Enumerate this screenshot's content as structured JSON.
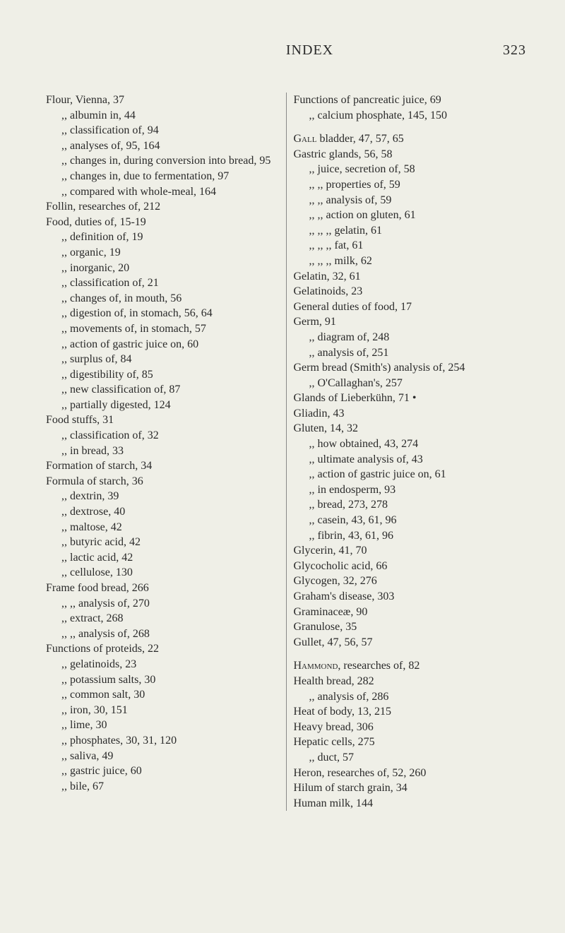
{
  "header": {
    "title": "INDEX",
    "pageNumber": "323"
  },
  "style": {
    "background": "#efefe7",
    "text_color": "#2a2a2a",
    "body_fontsize": 16,
    "header_fontsize": 20
  },
  "leftColumn": [
    {
      "cls": "entry",
      "text": "Flour, Vienna, 37"
    },
    {
      "cls": "sub1",
      "text": ",,    albumin in, 44"
    },
    {
      "cls": "sub1",
      "text": ",,    classification of, 94"
    },
    {
      "cls": "sub1",
      "text": ",,    analyses of, 95, 164"
    },
    {
      "cls": "sub1",
      "text": ",,    changes in, during conversion into bread, 95"
    },
    {
      "cls": "sub1",
      "text": ",,    changes in, due to fermentation, 97"
    },
    {
      "cls": "sub1",
      "text": ",,    compared with whole-meal, 164"
    },
    {
      "cls": "entry",
      "text": "Follin, researches of, 212"
    },
    {
      "cls": "entry",
      "text": "Food, duties of, 15-19"
    },
    {
      "cls": "sub1",
      "text": ",,    definition of, 19"
    },
    {
      "cls": "sub1",
      "text": ",,    organic, 19"
    },
    {
      "cls": "sub1",
      "text": ",,    inorganic, 20"
    },
    {
      "cls": "sub1",
      "text": ",,    classification of, 21"
    },
    {
      "cls": "sub1",
      "text": ",,    changes of, in mouth, 56"
    },
    {
      "cls": "sub1",
      "text": ",,    digestion of, in stomach, 56, 64"
    },
    {
      "cls": "sub1",
      "text": ",,    movements of, in stomach, 57"
    },
    {
      "cls": "sub1",
      "text": ",,    action of gastric juice on, 60"
    },
    {
      "cls": "sub1",
      "text": ",,    surplus of, 84"
    },
    {
      "cls": "sub1",
      "text": ",,    digestibility of, 85"
    },
    {
      "cls": "sub1",
      "text": ",,    new classification of, 87"
    },
    {
      "cls": "sub1",
      "text": ",,    partially digested, 124"
    },
    {
      "cls": "entry",
      "text": "Food stuffs, 31"
    },
    {
      "cls": "sub1",
      "text": ",,        classification of, 32"
    },
    {
      "cls": "sub1",
      "text": ",,        in bread, 33"
    },
    {
      "cls": "entry",
      "text": "Formation of starch, 34"
    },
    {
      "cls": "entry",
      "text": "Formula of starch, 36"
    },
    {
      "cls": "sub1",
      "text": ",,        dextrin, 39"
    },
    {
      "cls": "sub1",
      "text": ",,        dextrose, 40"
    },
    {
      "cls": "sub1",
      "text": ",,        maltose, 42"
    },
    {
      "cls": "sub1",
      "text": ",,        butyric acid, 42"
    },
    {
      "cls": "sub1",
      "text": ",,        lactic acid, 42"
    },
    {
      "cls": "sub1",
      "text": ",,        cellulose, 130"
    },
    {
      "cls": "entry",
      "text": "Frame food bread, 266"
    },
    {
      "cls": "sub1",
      "text": ",,        ,,    analysis of, 270"
    },
    {
      "cls": "sub1",
      "text": ",,        extract, 268"
    },
    {
      "cls": "sub1",
      "text": ",,        ,,    analysis of, 268"
    },
    {
      "cls": "entry",
      "text": "Functions of proteids, 22"
    },
    {
      "cls": "sub1",
      "text": ",,        gelatinoids, 23"
    },
    {
      "cls": "sub1",
      "text": ",,        potassium salts, 30"
    },
    {
      "cls": "sub1",
      "text": ",,        common salt, 30"
    },
    {
      "cls": "sub1",
      "text": ",,        iron, 30, 151"
    },
    {
      "cls": "sub1",
      "text": ",,        lime, 30"
    },
    {
      "cls": "sub1",
      "text": ",,        phosphates, 30, 31, 120"
    },
    {
      "cls": "sub1",
      "text": ",,        saliva, 49"
    },
    {
      "cls": "sub1",
      "text": ",,        gastric juice, 60"
    },
    {
      "cls": "sub1",
      "text": ",,        bile, 67"
    }
  ],
  "rightColumn": [
    {
      "cls": "entry",
      "text": "Functions of pancreatic juice, 69"
    },
    {
      "cls": "sub1",
      "text": ",,        calcium   phosphate, 145, 150"
    },
    {
      "cls": "gap",
      "text": ""
    },
    {
      "cls": "entry",
      "text": "Gall bladder, 47, 57, 65",
      "sc": true,
      "scWord": "Gall"
    },
    {
      "cls": "entry",
      "text": "Gastric glands, 56, 58"
    },
    {
      "cls": "sub1",
      "text": ",,    juice, secretion of, 58"
    },
    {
      "cls": "sub1",
      "text": ",,      ,,    properties of, 59"
    },
    {
      "cls": "sub1",
      "text": ",,      ,,    analysis of, 59"
    },
    {
      "cls": "sub1",
      "text": ",,      ,,    action on gluten, 61"
    },
    {
      "cls": "sub1",
      "text": ",,      ,,      ,,    gelatin, 61"
    },
    {
      "cls": "sub1",
      "text": ",,      ,,      ,,    fat, 61"
    },
    {
      "cls": "sub1",
      "text": ",,      ,,      ,,    milk, 62"
    },
    {
      "cls": "entry",
      "text": "Gelatin, 32, 61"
    },
    {
      "cls": "entry",
      "text": "Gelatinoids, 23"
    },
    {
      "cls": "entry",
      "text": "General duties of food, 17"
    },
    {
      "cls": "entry",
      "text": "Germ, 91"
    },
    {
      "cls": "sub1",
      "text": ",,    diagram of, 248"
    },
    {
      "cls": "sub1",
      "text": ",,    analysis of, 251"
    },
    {
      "cls": "entry",
      "text": "Germ bread (Smith's) analysis of, 254"
    },
    {
      "cls": "sub1",
      "text": ",,        O'Callaghan's, 257"
    },
    {
      "cls": "entry",
      "text": "Glands of Lieberkühn, 71   •"
    },
    {
      "cls": "entry",
      "text": "Gliadin, 43"
    },
    {
      "cls": "entry",
      "text": "Gluten, 14, 32"
    },
    {
      "cls": "sub1",
      "text": ",,    how obtained, 43, 274"
    },
    {
      "cls": "sub1",
      "text": ",,    ultimate analysis of, 43"
    },
    {
      "cls": "sub1",
      "text": ",,    action of gastric juice on, 61"
    },
    {
      "cls": "sub1",
      "text": ",,    in endosperm, 93"
    },
    {
      "cls": "sub1",
      "text": ",,        bread, 273, 278"
    },
    {
      "cls": "sub1",
      "text": ",,    casein, 43, 61, 96"
    },
    {
      "cls": "sub1",
      "text": ",,    fibrin, 43, 61, 96"
    },
    {
      "cls": "entry",
      "text": "Glycerin, 41, 70"
    },
    {
      "cls": "entry",
      "text": "Glycocholic acid, 66"
    },
    {
      "cls": "entry",
      "text": "Glycogen, 32, 276"
    },
    {
      "cls": "entry",
      "text": "Graham's disease, 303"
    },
    {
      "cls": "entry",
      "text": "Graminaceæ, 90"
    },
    {
      "cls": "entry",
      "text": "Granulose, 35"
    },
    {
      "cls": "entry",
      "text": "Gullet, 47, 56, 57"
    },
    {
      "cls": "gap",
      "text": ""
    },
    {
      "cls": "entry",
      "text": "Hammond, researches of, 82",
      "sc": true,
      "scWord": "Hammond"
    },
    {
      "cls": "entry",
      "text": "Health bread, 282"
    },
    {
      "cls": "sub1",
      "text": ",,        analysis of, 286"
    },
    {
      "cls": "entry",
      "text": "Heat of body, 13, 215"
    },
    {
      "cls": "entry",
      "text": "Heavy bread, 306"
    },
    {
      "cls": "entry",
      "text": "Hepatic cells, 275"
    },
    {
      "cls": "sub1",
      "text": ",,    duct, 57"
    },
    {
      "cls": "entry",
      "text": "Heron, researches of, 52, 260"
    },
    {
      "cls": "entry",
      "text": "Hilum of starch grain, 34"
    },
    {
      "cls": "entry",
      "text": "Human milk, 144"
    }
  ]
}
